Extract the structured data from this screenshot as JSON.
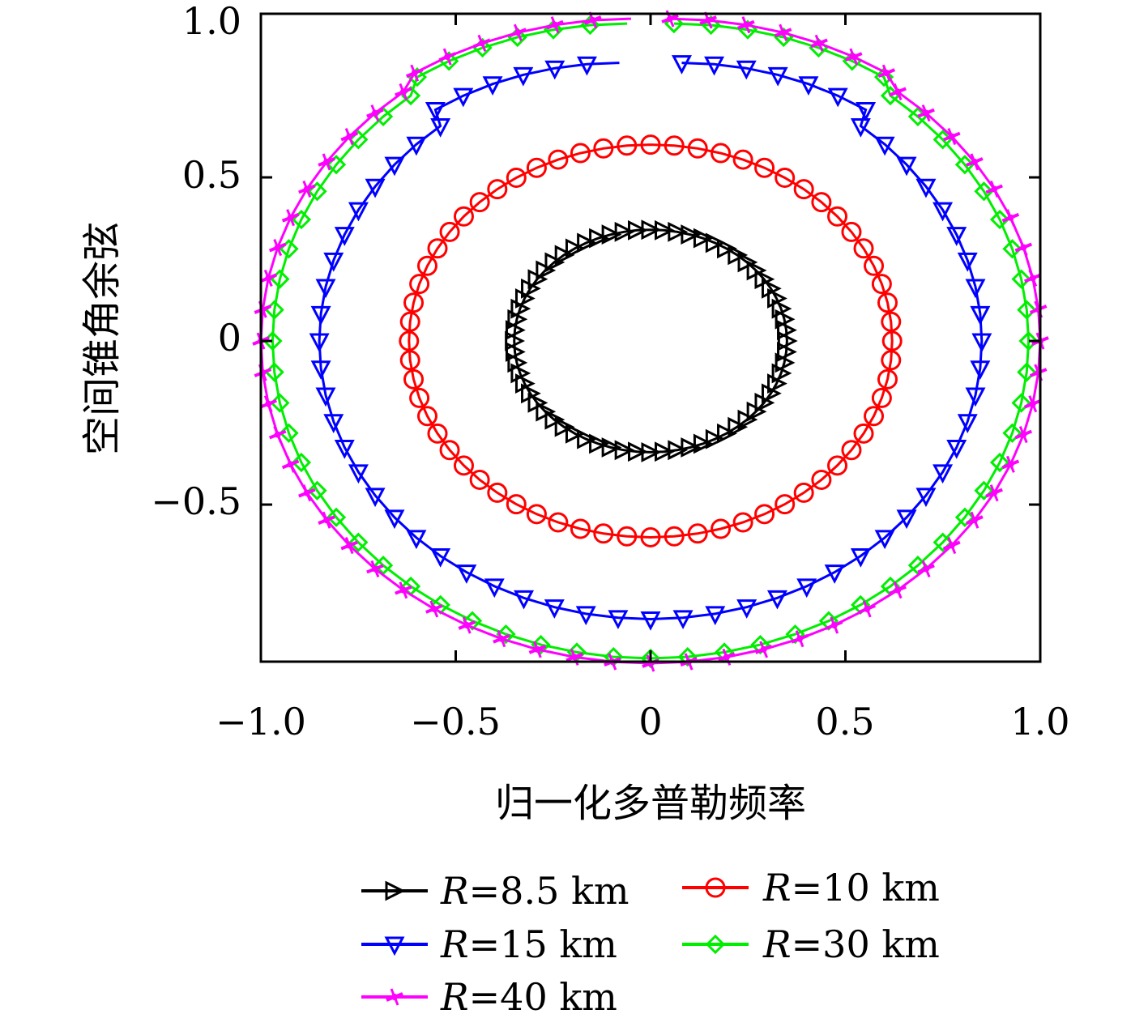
{
  "chart_data": {
    "type": "line",
    "title": "",
    "xlabel": "归一化多普勒频率",
    "ylabel": "空间锥角余弦",
    "xlim": [
      -1.0,
      1.0
    ],
    "ylim": [
      -0.98,
      1.0
    ],
    "xticks": [
      "−1.0",
      "−0.5",
      "0",
      "0.5",
      "1.0"
    ],
    "yticks": [
      "−0.5",
      "0",
      "0.5",
      "1.0"
    ],
    "legend_position": "bottom",
    "series": [
      {
        "name": "R=8.5 km",
        "label_var": "R",
        "label_rest": "=8.5 km",
        "color": "#000000",
        "marker": "triangle-right",
        "rx": 0.35,
        "ry": 0.34,
        "gap": 0.0
      },
      {
        "name": "R=10 km",
        "label_var": "R",
        "label_rest": "=10 km",
        "color": "#ff0000",
        "marker": "circle",
        "rx": 0.62,
        "ry": 0.6,
        "gap": 0.0
      },
      {
        "name": "R=15 km",
        "label_var": "R",
        "label_rest": "=15 km",
        "color": "#0000ff",
        "marker": "triangle-down",
        "rx": 0.85,
        "ry": 0.85,
        "gap": 0.08
      },
      {
        "name": "R=30 km",
        "label_var": "R",
        "label_rest": "=30 km",
        "color": "#00ee00",
        "marker": "diamond",
        "rx": 0.97,
        "ry": 0.97,
        "gap": 0.06
      },
      {
        "name": "R=40 km",
        "label_var": "R",
        "label_rest": "=40 km",
        "color": "#ff00ff",
        "marker": "star",
        "rx": 1.0,
        "ry": 0.985,
        "gap": 0.05
      }
    ]
  }
}
